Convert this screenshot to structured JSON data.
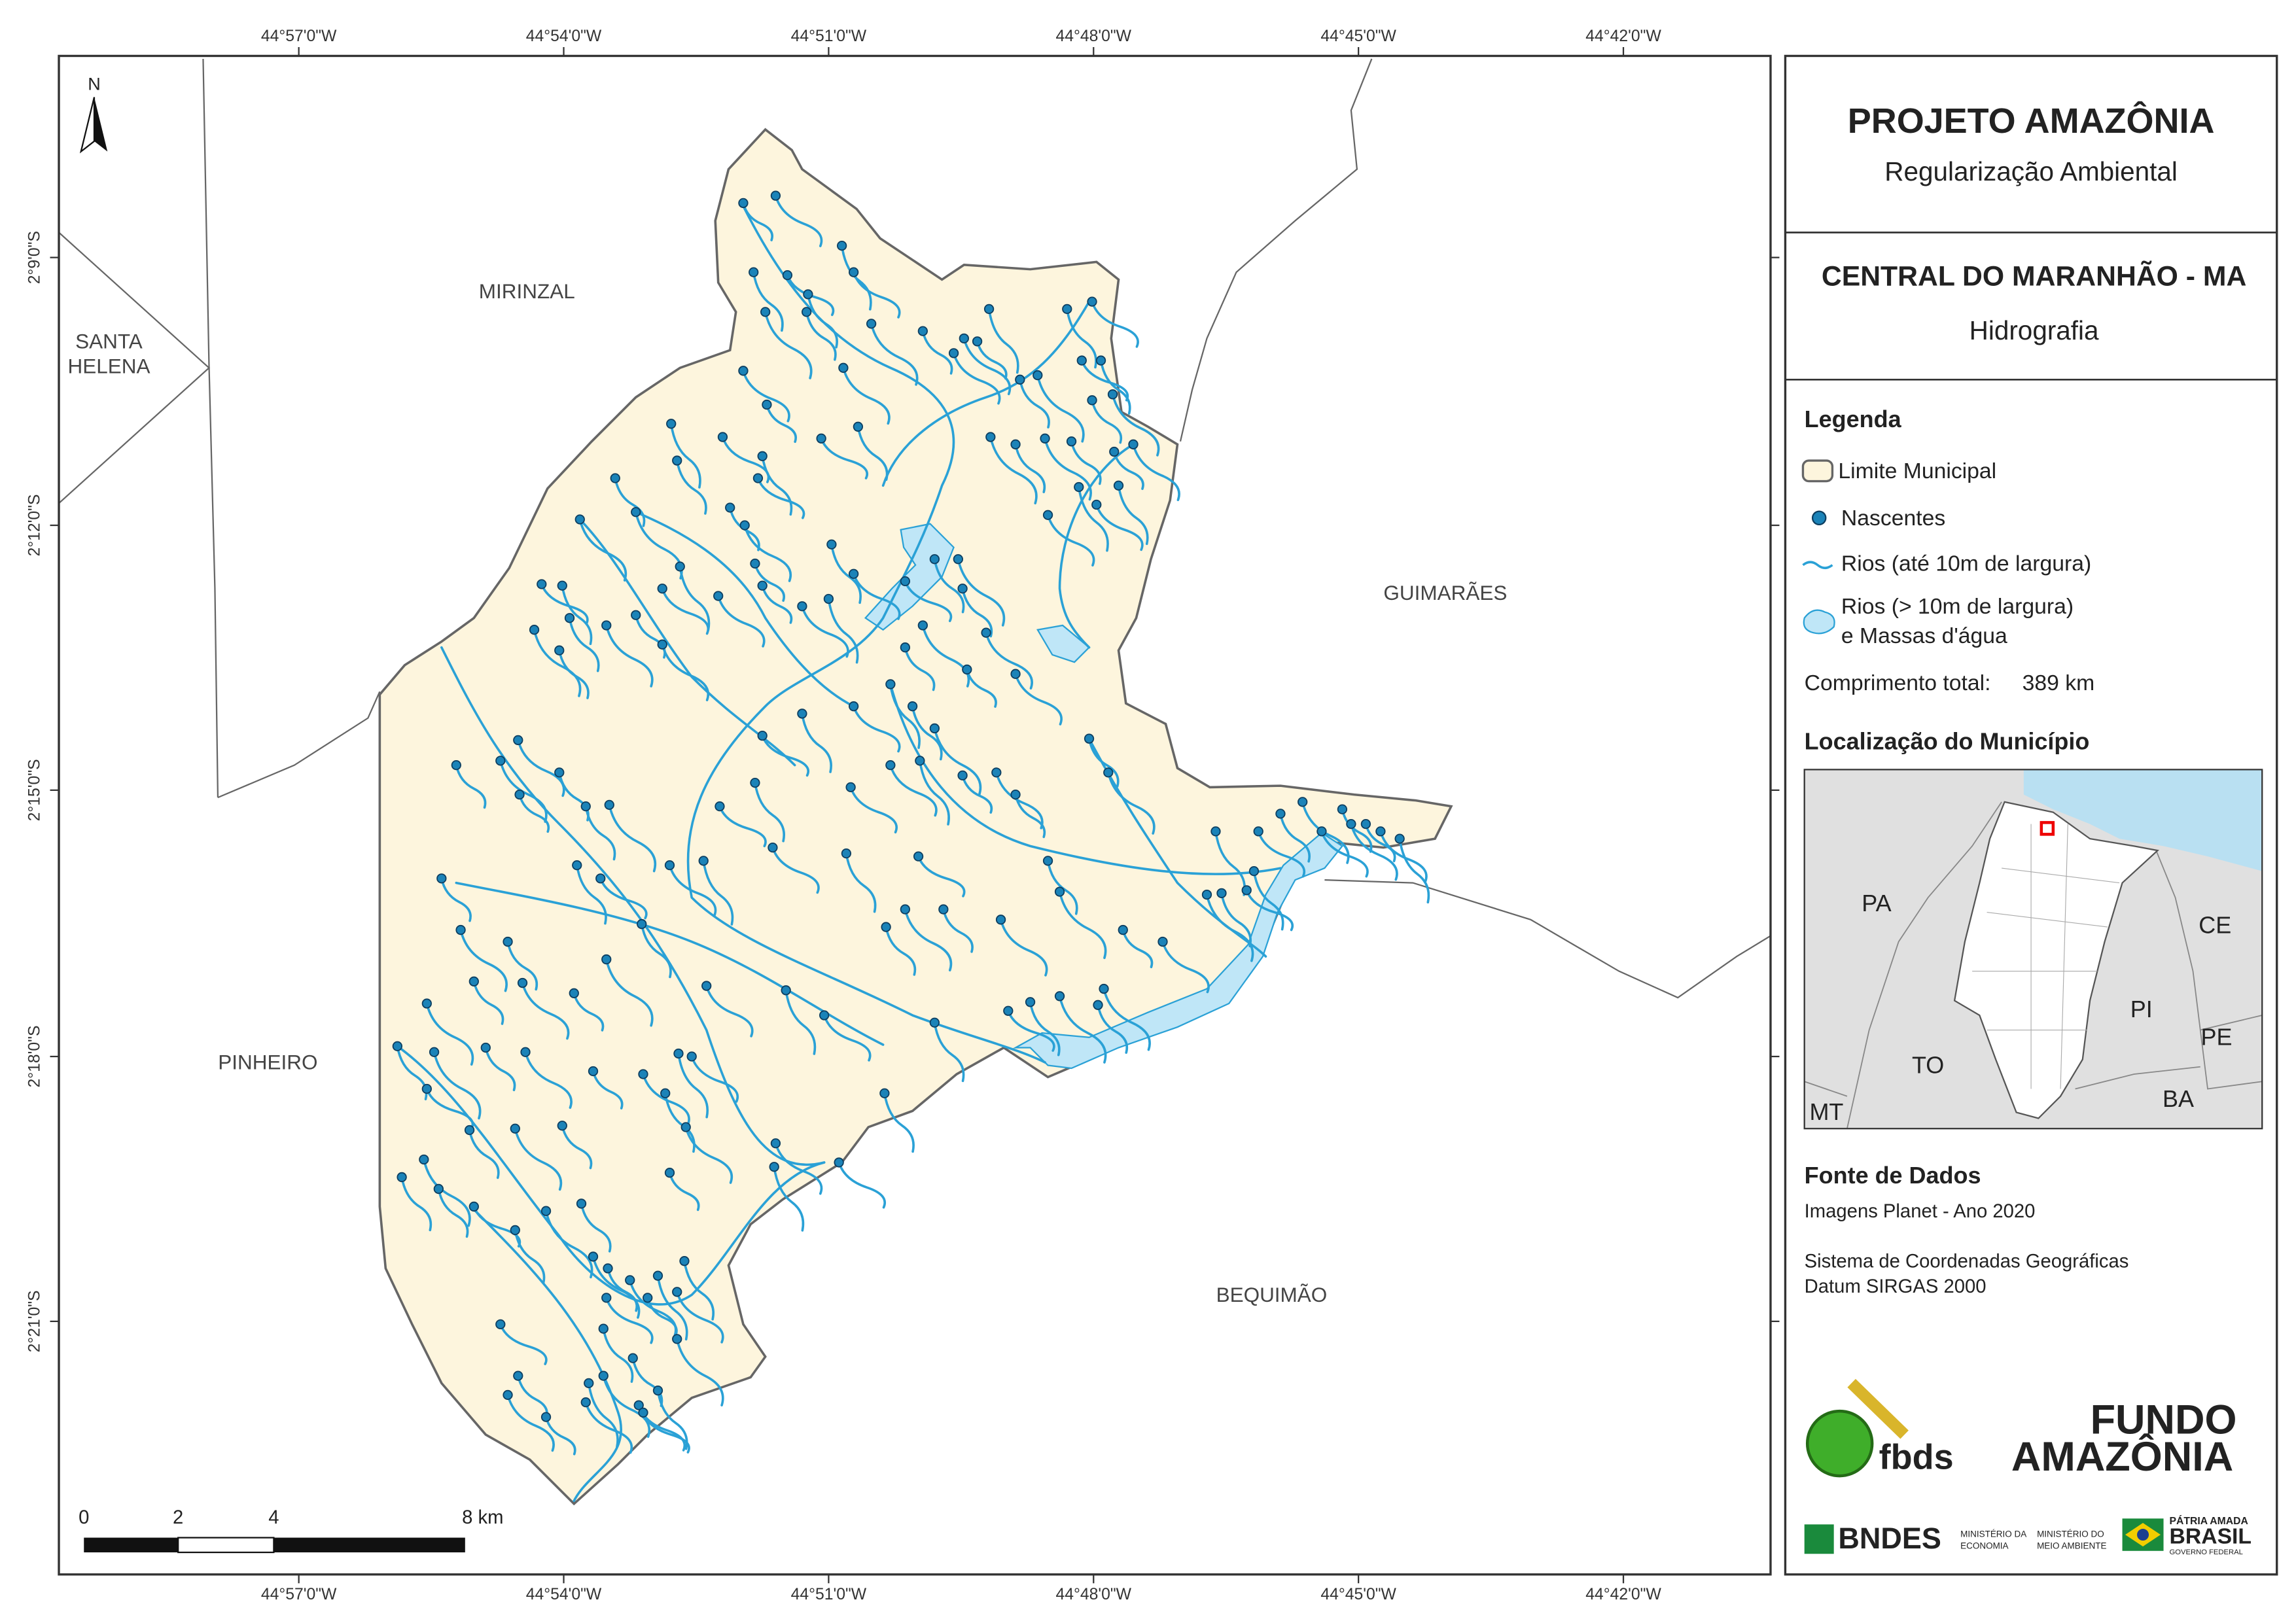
{
  "map": {
    "grid_labels": {
      "x": [
        "44°57'0\"W",
        "44°54'0\"W",
        "44°51'0\"W",
        "44°48'0\"W",
        "44°45'0\"W",
        "44°42'0\"W"
      ],
      "y": [
        "2°9'0\"S",
        "2°12'0\"S",
        "2°15'0\"S",
        "2°18'0\"S",
        "2°21'0\"S"
      ]
    },
    "places": [
      {
        "lines": [
          "MIRINZAL"
        ]
      },
      {
        "lines": [
          "SANTA",
          "HELENA"
        ]
      },
      {
        "lines": [
          "GUIMARÃES"
        ]
      },
      {
        "lines": [
          "PINHEIRO"
        ]
      },
      {
        "lines": [
          "BEQUIMÃO"
        ]
      }
    ],
    "north": "N",
    "scale_bar": {
      "labels": [
        "0",
        "2",
        "4",
        "8 km"
      ]
    }
  },
  "panel": {
    "title": "PROJETO AMAZÔNIA",
    "subtitle": "Regularização Ambiental",
    "municipality": "CENTRAL DO MARANHÃO - MA",
    "theme": "Hidrografia",
    "legend": {
      "heading": "Legenda",
      "items": [
        {
          "lines": [
            "Limite Municipal"
          ]
        },
        {
          "lines": [
            "Nascentes"
          ]
        },
        {
          "lines": [
            "Rios (até 10m de largura)"
          ]
        },
        {
          "lines": [
            "Rios (> 10m de largura)",
            "e Massas d'água"
          ]
        }
      ],
      "total_label": "Comprimento total:",
      "total_value": "389 km"
    },
    "location": {
      "heading": "Localização do Município",
      "states": [
        "PA",
        "CE",
        "PI",
        "TO",
        "PE",
        "BA",
        "MT"
      ]
    },
    "sources": {
      "heading": "Fonte de Dados",
      "lines": [
        "Imagens Planet - Ano 2020",
        "Sistema de Coordenadas Geográficas",
        "Datum SIRGAS 2000"
      ]
    },
    "logos": {
      "fbds": "fbds",
      "fundo": [
        "FUNDO",
        "AMAZÔNIA"
      ],
      "bndes": "BNDES",
      "ministry_economy": [
        "MINISTÉRIO DA",
        "ECONOMIA"
      ],
      "ministry_environment": [
        "MINISTÉRIO DO",
        "MEIO AMBIENTE"
      ],
      "brasil": [
        "PÁTRIA AMADA",
        "BRASIL",
        "GOVERNO FEDERAL"
      ]
    }
  }
}
